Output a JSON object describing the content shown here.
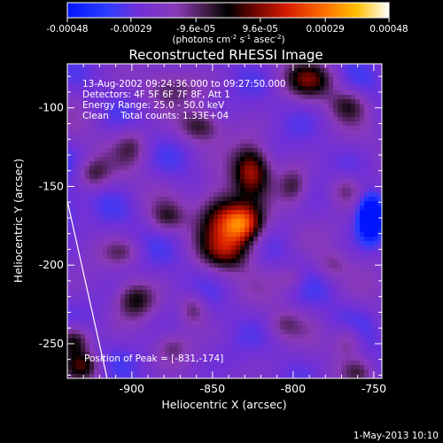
{
  "chart_data": {
    "type": "heatmap",
    "title": "Reconstructed RHESSI Image",
    "xlabel": "Heliocentric X (arcsec)",
    "ylabel": "Heliocentric Y (arcsec)",
    "xlim": [
      -940,
      -745
    ],
    "ylim": [
      -272,
      -72
    ],
    "x_ticks": [
      -900,
      -850,
      -800,
      -750
    ],
    "y_ticks": [
      -100,
      -150,
      -200,
      -250
    ],
    "colorbar": {
      "min": -0.00048,
      "max": 0.00048,
      "ticks": [
        -0.00048,
        -0.00029,
        -9.6e-05,
        9.6e-05,
        0.00029,
        0.00048
      ],
      "tick_labels": [
        "-0.00048",
        "-0.00029",
        "-9.6e-05",
        "9.6e-05",
        "0.00029",
        "0.00048"
      ],
      "unit_main": "(photons cm",
      "unit_exp1": "-2",
      "unit_mid": " s",
      "unit_exp2": "-1",
      "unit_mid2": " asec",
      "unit_exp3": "-2",
      "unit_end": ")"
    },
    "annotations": [
      "13-Aug-2002 09:24:36.000 to 09:27:50.000",
      "Detectors: 4F 5F 6F 7F 8F, Att 1",
      "Energy Range: 25.0 - 50.0 keV",
      "Clean    Total counts: 1.33E+04"
    ],
    "peak_label": "Position of Peak = [-831,-174]",
    "footer_date": "1-May-2013 10:10",
    "sources": [
      {
        "x": -831,
        "y": -174,
        "amp": 0.00048,
        "sx": 9,
        "sy": 9
      },
      {
        "x": -826,
        "y": -140,
        "amp": 0.00036,
        "sx": 8,
        "sy": 11
      },
      {
        "x": -846,
        "y": -168,
        "amp": 0.0003,
        "sx": 10,
        "sy": 14
      },
      {
        "x": -840,
        "y": -192,
        "amp": 0.00022,
        "sx": 11,
        "sy": 8
      },
      {
        "x": -858,
        "y": -112,
        "amp": 0.0002,
        "sx": 9,
        "sy": 7
      },
      {
        "x": -790,
        "y": -82,
        "amp": 0.00024,
        "sx": 11,
        "sy": 8
      },
      {
        "x": -878,
        "y": -88,
        "amp": 0.00014,
        "sx": 12,
        "sy": 8
      },
      {
        "x": -766,
        "y": -98,
        "amp": 0.00016,
        "sx": 8,
        "sy": 7
      },
      {
        "x": -900,
        "y": -124,
        "amp": 0.00014,
        "sx": 7,
        "sy": 8
      },
      {
        "x": -924,
        "y": -142,
        "amp": 0.00018,
        "sx": 7,
        "sy": 7
      },
      {
        "x": -800,
        "y": -150,
        "amp": 0.00016,
        "sx": 6,
        "sy": 8
      },
      {
        "x": -768,
        "y": -152,
        "amp": 0.00014,
        "sx": 7,
        "sy": 7
      },
      {
        "x": -878,
        "y": -170,
        "amp": 0.00014,
        "sx": 7,
        "sy": 6
      },
      {
        "x": -906,
        "y": -192,
        "amp": 0.00012,
        "sx": 8,
        "sy": 6
      },
      {
        "x": -898,
        "y": -222,
        "amp": 0.0002,
        "sx": 8,
        "sy": 8
      },
      {
        "x": -862,
        "y": -228,
        "amp": 0.00016,
        "sx": 6,
        "sy": 7
      },
      {
        "x": -802,
        "y": -208,
        "amp": 0.00012,
        "sx": 7,
        "sy": 6
      },
      {
        "x": -776,
        "y": -200,
        "amp": 0.0001,
        "sx": 7,
        "sy": 6
      },
      {
        "x": -936,
        "y": -248,
        "amp": 0.00026,
        "sx": 7,
        "sy": 7
      },
      {
        "x": -930,
        "y": -264,
        "amp": 0.00022,
        "sx": 7,
        "sy": 6
      },
      {
        "x": -875,
        "y": -252,
        "amp": 0.0001,
        "sx": 7,
        "sy": 6
      },
      {
        "x": -806,
        "y": -238,
        "amp": 0.0001,
        "sx": 7,
        "sy": 6
      },
      {
        "x": -766,
        "y": -248,
        "amp": 0.00014,
        "sx": 6,
        "sy": 7
      },
      {
        "x": -760,
        "y": -268,
        "amp": 0.0001,
        "sx": 6,
        "sy": 5
      },
      {
        "x": -752,
        "y": -170,
        "amp": -0.00048,
        "sx": 5,
        "sy": 9
      },
      {
        "x": -940,
        "y": -165,
        "amp": -0.0001,
        "sx": 6,
        "sy": 10
      }
    ]
  }
}
